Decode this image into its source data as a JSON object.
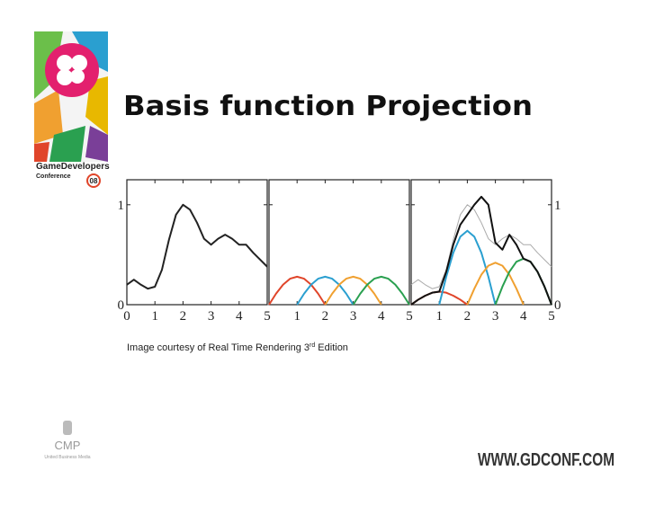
{
  "slide": {
    "title": "Basis function Projection",
    "caption": {
      "before": "Image courtesy of Real Time Rendering 3",
      "sup": "rd",
      "after": " Edition"
    },
    "logo": {
      "brand": "GameDevelopers",
      "event": "Conference",
      "year": "08"
    },
    "sponsor": {
      "name": "CMP",
      "tagline": "United Business Media"
    },
    "url": "WWW.GDCONF.COM"
  },
  "chart_data": [
    {
      "type": "line",
      "xlim": [
        0,
        5
      ],
      "ylim": [
        0,
        1.25
      ],
      "xticks": [
        0,
        1,
        2,
        3,
        4,
        5
      ],
      "yticks": [
        0,
        1
      ],
      "ytick_side": "left",
      "x": [
        0,
        0.25,
        0.5,
        0.75,
        1,
        1.25,
        1.5,
        1.75,
        2,
        2.25,
        2.5,
        2.75,
        3,
        3.25,
        3.5,
        3.75,
        4,
        4.25,
        4.5,
        4.75,
        5
      ],
      "series": [
        {
          "color": "#222222",
          "values": [
            0.2,
            0.25,
            0.2,
            0.16,
            0.18,
            0.35,
            0.65,
            0.9,
            1.0,
            0.95,
            0.82,
            0.66,
            0.6,
            0.66,
            0.7,
            0.66,
            0.6,
            0.6,
            0.52,
            0.45,
            0.38
          ]
        }
      ]
    },
    {
      "type": "line",
      "xlim": [
        0,
        5
      ],
      "ylim": [
        0,
        1.25
      ],
      "xticks": [
        1,
        2,
        3,
        4,
        5
      ],
      "yticks": [
        0,
        1
      ],
      "ytick_side": "none",
      "x": [
        0,
        0.25,
        0.5,
        0.75,
        1,
        1.25,
        1.5,
        1.75,
        2,
        2.25,
        2.5,
        2.75,
        3,
        3.25,
        3.5,
        3.75,
        4,
        4.25,
        4.5,
        4.75,
        5
      ],
      "series": [
        {
          "color": "#e0452a",
          "values": [
            0,
            0.11,
            0.2,
            0.26,
            0.28,
            0.26,
            0.2,
            0.11,
            0,
            null,
            null,
            null,
            null,
            null,
            null,
            null,
            null,
            null,
            null,
            null,
            null
          ]
        },
        {
          "color": "#2a9fd0",
          "values": [
            null,
            null,
            null,
            null,
            0,
            0.11,
            0.2,
            0.26,
            0.28,
            0.26,
            0.2,
            0.11,
            0,
            null,
            null,
            null,
            null,
            null,
            null,
            null,
            null
          ]
        },
        {
          "color": "#f0a030",
          "values": [
            null,
            null,
            null,
            null,
            null,
            null,
            null,
            null,
            0,
            0.11,
            0.2,
            0.26,
            0.28,
            0.26,
            0.2,
            0.11,
            0,
            null,
            null,
            null,
            null
          ]
        },
        {
          "color": "#2aa050",
          "values": [
            null,
            null,
            null,
            null,
            null,
            null,
            null,
            null,
            null,
            null,
            null,
            null,
            0,
            0.11,
            0.2,
            0.26,
            0.28,
            0.26,
            0.2,
            0.11,
            0
          ]
        }
      ]
    },
    {
      "type": "line",
      "xlim": [
        0,
        5
      ],
      "ylim": [
        0,
        1.25
      ],
      "xticks": [
        1,
        2,
        3,
        4,
        5
      ],
      "yticks": [
        0,
        1
      ],
      "ytick_side": "right",
      "x": [
        0,
        0.25,
        0.5,
        0.75,
        1,
        1.25,
        1.5,
        1.75,
        2,
        2.25,
        2.5,
        2.75,
        3,
        3.25,
        3.5,
        3.75,
        4,
        4.25,
        4.5,
        4.75,
        5
      ],
      "series": [
        {
          "color": "#aaaaaa",
          "values": [
            0.2,
            0.25,
            0.2,
            0.16,
            0.18,
            0.35,
            0.65,
            0.9,
            1.0,
            0.95,
            0.82,
            0.66,
            0.6,
            0.66,
            0.7,
            0.66,
            0.6,
            0.6,
            0.52,
            0.45,
            0.38
          ]
        },
        {
          "color": "#e0452a",
          "values": [
            0,
            0.05,
            0.09,
            0.12,
            0.13,
            0.12,
            0.09,
            0.05,
            0,
            null,
            null,
            null,
            null,
            null,
            null,
            null,
            null,
            null,
            null,
            null,
            null
          ]
        },
        {
          "color": "#2a9fd0",
          "values": [
            null,
            null,
            null,
            null,
            0,
            0.28,
            0.52,
            0.68,
            0.74,
            0.68,
            0.52,
            0.28,
            0,
            null,
            null,
            null,
            null,
            null,
            null,
            null,
            null
          ]
        },
        {
          "color": "#f0a030",
          "values": [
            null,
            null,
            null,
            null,
            null,
            null,
            null,
            null,
            0,
            0.16,
            0.3,
            0.39,
            0.42,
            0.39,
            0.3,
            0.16,
            0,
            null,
            null,
            null,
            null
          ]
        },
        {
          "color": "#2aa050",
          "values": [
            null,
            null,
            null,
            null,
            null,
            null,
            null,
            null,
            null,
            null,
            null,
            null,
            0,
            0.18,
            0.33,
            0.43,
            0.46,
            0.43,
            0.33,
            0.18,
            0
          ]
        },
        {
          "color": "#111111",
          "values": [
            0,
            0.05,
            0.09,
            0.12,
            0.13,
            0.33,
            0.6,
            0.8,
            0.9,
            1.0,
            1.08,
            1.0,
            0.62,
            0.55,
            0.7,
            0.6,
            0.46,
            0.43,
            0.33,
            0.18,
            0
          ]
        }
      ]
    }
  ]
}
